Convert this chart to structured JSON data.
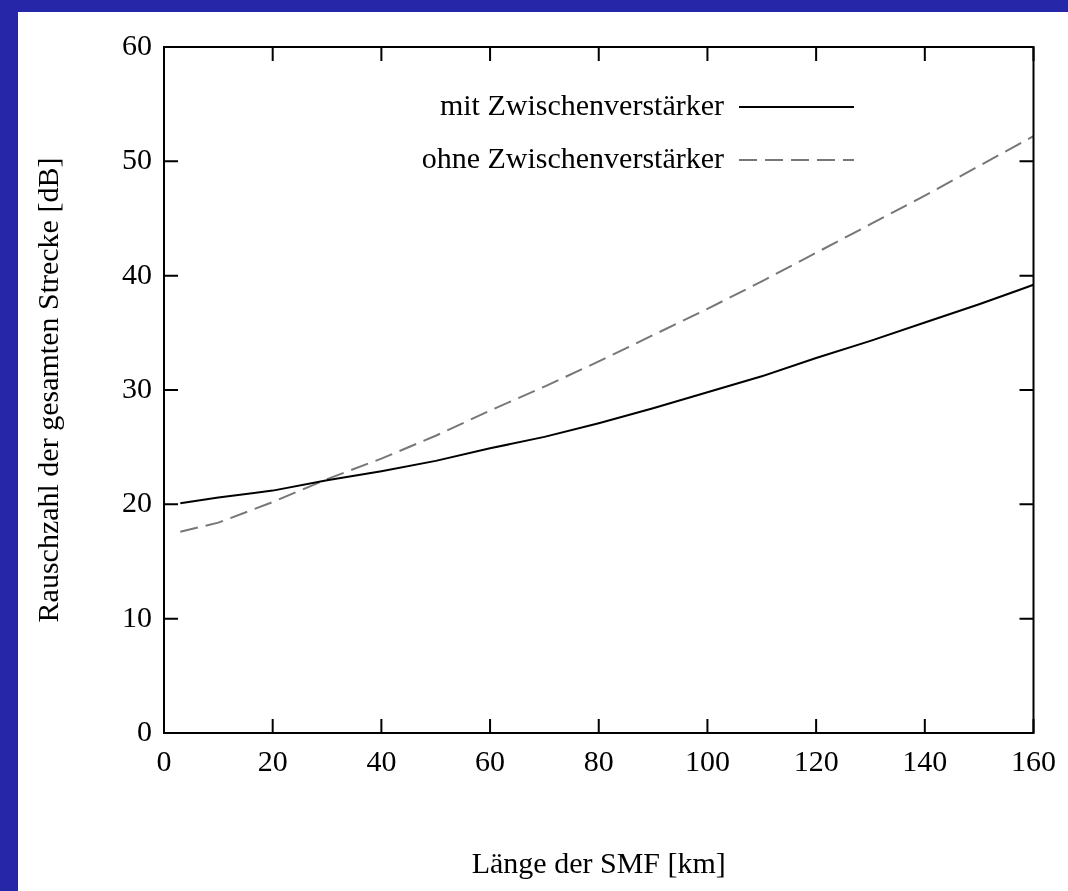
{
  "chart_data": {
    "type": "line",
    "xlabel": "Länge der SMF [km]",
    "ylabel": "Rauschzahl der gesamten Strecke [dB]",
    "xlim": [
      0,
      160
    ],
    "xticks": [
      0,
      20,
      40,
      60,
      80,
      100,
      120,
      140,
      160
    ],
    "ylim": [
      0,
      60
    ],
    "yticks": [
      0,
      10,
      20,
      30,
      40,
      50,
      60
    ],
    "grid": false,
    "legend": "top left",
    "marker": "none",
    "series": [
      {
        "name": "mit Zwischenverstärker",
        "color": "#000000",
        "line_style": "solid",
        "x": [
          3,
          10,
          20,
          30,
          40,
          50,
          60,
          70,
          80,
          90,
          100,
          110,
          120,
          130,
          140,
          150,
          160
        ],
        "values": [
          20.1,
          20.6,
          21.2,
          22.1,
          22.9,
          23.8,
          24.9,
          25.9,
          27.1,
          28.4,
          29.8,
          31.2,
          32.8,
          34.3,
          35.9,
          37.5,
          39.2
        ]
      },
      {
        "name": "ohne Zwischenverstärker",
        "color": "#777777",
        "line_style": "dashed",
        "x": [
          3,
          10,
          20,
          30,
          40,
          50,
          60,
          70,
          80,
          90,
          100,
          110,
          120,
          130,
          140,
          150,
          160
        ],
        "values": [
          17.6,
          18.4,
          20.2,
          22.2,
          24.0,
          26.0,
          28.2,
          30.3,
          32.5,
          34.8,
          37.1,
          39.5,
          42.0,
          44.5,
          47.0,
          49.6,
          52.2
        ]
      }
    ]
  }
}
